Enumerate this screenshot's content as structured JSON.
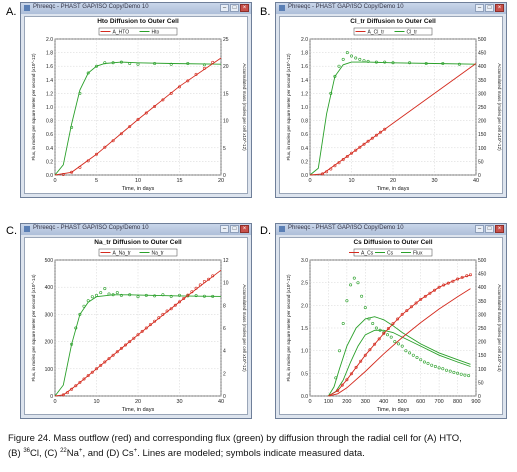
{
  "window_title": "Phreeqc  - PHAST GAP/ISO Copy/Demo 10",
  "panels": [
    {
      "letter": "A.",
      "title": "Hto Diffusion to Outer Cell",
      "legend": [
        "A_HTO",
        "Hto"
      ],
      "xlabel": "Time, in days",
      "ylabel_left": "Flux, in moles per square meter per second (x10^-12)",
      "ylabel_right": "Accumulated mass (moles per cell x10^-12)",
      "xticks": [
        "0",
        "5",
        "10",
        "15",
        "20"
      ],
      "yticks_left": [
        "0.0",
        "0.2",
        "0.4",
        "0.6",
        "0.8",
        "1.0",
        "1.2",
        "1.4",
        "1.6",
        "1.8",
        "2.0"
      ],
      "yticks_right": [
        "0",
        "5",
        "10",
        "15",
        "20",
        "25"
      ]
    },
    {
      "letter": "B.",
      "title": "Cl_tr Diffusion to Outer Cell",
      "legend": [
        "A_Cl_tr",
        "Cl_tr"
      ],
      "xlabel": "Time, in days",
      "ylabel_left": "Flux, in moles per square meter per second (x10^-12)",
      "ylabel_right": "Accumulated mass (moles per cell x10^-12)",
      "xticks": [
        "0",
        "10",
        "20",
        "30",
        "40"
      ],
      "yticks_left": [
        "0.0",
        "0.2",
        "0.4",
        "0.6",
        "0.8",
        "1.0",
        "1.2",
        "1.4",
        "1.6",
        "1.8",
        "2.0"
      ],
      "yticks_right": [
        "0",
        "50",
        "100",
        "150",
        "200",
        "250",
        "300",
        "350",
        "400",
        "450",
        "500"
      ]
    },
    {
      "letter": "C.",
      "title": "Na_tr Diffusion to Outer Cell",
      "legend": [
        "A_Na_tr",
        "Na_tr"
      ],
      "xlabel": "Time, in days",
      "ylabel_left": "Flux, in moles per square meter per second (x10^-14)",
      "ylabel_right": "Accumulated mass (moles per cell x10^-12)",
      "xticks": [
        "0",
        "10",
        "20",
        "30",
        "40"
      ],
      "yticks_left": [
        "0",
        "100",
        "200",
        "300",
        "400",
        "500"
      ],
      "yticks_right": [
        "0",
        "2",
        "4",
        "6",
        "8",
        "10",
        "12"
      ]
    },
    {
      "letter": "D.",
      "title": "Cs Diffusion to Outer Cell",
      "legend": [
        "A_Cs",
        "Cs",
        "Flux"
      ],
      "xlabel": "Time, in days",
      "ylabel_left": "Flux, in moles per square meter per second (x10^-12)",
      "ylabel_right": "Accumulated mass (moles per cell x10^-14)",
      "xticks": [
        "0",
        "100",
        "200",
        "300",
        "400",
        "500",
        "600",
        "700",
        "800",
        "900"
      ],
      "yticks_left": [
        "0.0",
        "0.5",
        "1.0",
        "1.5",
        "2.0",
        "2.5",
        "3.0"
      ],
      "yticks_right": [
        "0",
        "50",
        "100",
        "150",
        "200",
        "250",
        "300",
        "350",
        "400",
        "450",
        "500"
      ]
    }
  ],
  "caption": {
    "line1": "Figure 24. Mass outflow (red) and corresponding flux (green) by diffusion through the radial cell for (A) HTO,",
    "line2_pre": "(B) ",
    "sup_cl": "36",
    "line2_cl": "Cl, (C) ",
    "sup_na": "22",
    "line2_na": "Na",
    "sup_plus1": "+",
    "line2_cs": ", and (D) Cs",
    "sup_plus2": "+",
    "line2_post": ". Lines are modeled; symbols indicate measured data."
  },
  "colors": {
    "mass": "#d42a1e",
    "flux": "#2aa02a",
    "grid": "#c8c8c8"
  },
  "chart_data": [
    {
      "type": "line",
      "title": "Hto Diffusion to Outer Cell",
      "xlabel": "Time, in days",
      "ylabel": "Flux, in moles per square meter per second (x10^-12)",
      "y2label": "Accumulated mass (moles per cell x10^-12)",
      "xlim": [
        0,
        20
      ],
      "ylim": [
        0,
        2.0
      ],
      "y2lim": [
        0,
        25
      ],
      "series": [
        {
          "name": "Hto",
          "axis": "left",
          "style": "line",
          "color": "#2aa02a",
          "x": [
            0,
            1,
            2,
            3,
            4,
            5,
            6,
            8,
            10,
            14,
            20
          ],
          "y": [
            0,
            0.15,
            0.75,
            1.25,
            1.5,
            1.6,
            1.64,
            1.66,
            1.65,
            1.64,
            1.63
          ]
        },
        {
          "name": "Hto",
          "axis": "left",
          "style": "markers",
          "color": "#2aa02a",
          "x": [
            2,
            3,
            4,
            5,
            6,
            7,
            8,
            9,
            10,
            12,
            14,
            16,
            18
          ],
          "y": [
            0.7,
            1.2,
            1.5,
            1.6,
            1.65,
            1.65,
            1.66,
            1.64,
            1.63,
            1.64,
            1.63,
            1.64,
            1.62
          ]
        },
        {
          "name": "A_HTO",
          "axis": "right",
          "style": "line",
          "color": "#d42a1e",
          "x": [
            0,
            2,
            5,
            10,
            15,
            20
          ],
          "y": [
            0,
            0.5,
            3.8,
            10.2,
            16.3,
            21.5
          ]
        },
        {
          "name": "A_HTO",
          "axis": "right",
          "style": "markers",
          "color": "#d42a1e",
          "x": [
            1,
            2,
            3,
            4,
            5,
            6,
            7,
            8,
            9,
            10,
            11,
            12,
            13,
            14,
            15,
            16,
            17,
            18,
            19
          ],
          "y": [
            0.1,
            0.5,
            1.4,
            2.6,
            3.8,
            5.1,
            6.3,
            7.6,
            8.9,
            10.2,
            11.4,
            12.6,
            13.8,
            15.0,
            16.2,
            17.3,
            18.5,
            19.6,
            20.7
          ]
        }
      ]
    },
    {
      "type": "line",
      "title": "Cl_tr Diffusion to Outer Cell",
      "xlabel": "Time, in days",
      "ylabel": "Flux, in moles per square meter per second (x10^-12)",
      "y2label": "Accumulated mass (moles per cell x10^-12)",
      "xlim": [
        0,
        40
      ],
      "ylim": [
        0,
        2.0
      ],
      "y2lim": [
        0,
        500
      ],
      "series": [
        {
          "name": "Cl_tr",
          "axis": "left",
          "style": "line",
          "color": "#2aa02a",
          "x": [
            0,
            2,
            4,
            6,
            8,
            10,
            14,
            20,
            30,
            40
          ],
          "y": [
            0,
            0.1,
            0.9,
            1.45,
            1.62,
            1.66,
            1.66,
            1.65,
            1.64,
            1.63
          ]
        },
        {
          "name": "Cl_tr",
          "axis": "left",
          "style": "markers",
          "color": "#2aa02a",
          "x": [
            5,
            6,
            7,
            8,
            9,
            10,
            11,
            12,
            13,
            14,
            16,
            18,
            20,
            24,
            28,
            32,
            36
          ],
          "y": [
            1.2,
            1.45,
            1.6,
            1.7,
            1.8,
            1.75,
            1.72,
            1.7,
            1.68,
            1.67,
            1.66,
            1.66,
            1.65,
            1.65,
            1.64,
            1.64,
            1.63
          ]
        },
        {
          "name": "A_Cl_tr",
          "axis": "right",
          "style": "line",
          "color": "#d42a1e",
          "x": [
            0,
            3,
            10,
            20,
            30,
            40
          ],
          "y": [
            0,
            4,
            80,
            190,
            300,
            410
          ]
        },
        {
          "name": "A_Cl_tr",
          "axis": "right",
          "style": "markers",
          "color": "#d42a1e",
          "x": [
            3,
            4,
            5,
            6,
            7,
            8,
            9,
            10,
            11,
            12,
            13,
            14,
            15,
            16,
            17,
            18
          ],
          "y": [
            4,
            12,
            22,
            34,
            45,
            57,
            68,
            80,
            91,
            102,
            113,
            124,
            135,
            146,
            157,
            168
          ]
        }
      ]
    },
    {
      "type": "line",
      "title": "Na_tr Diffusion to Outer Cell",
      "xlabel": "Time, in days",
      "ylabel": "Flux, in moles per square meter per second (x10^-14)",
      "y2label": "Accumulated mass (moles per cell x10^-12)",
      "xlim": [
        0,
        40
      ],
      "ylim": [
        0,
        500
      ],
      "y2lim": [
        0,
        12
      ],
      "series": [
        {
          "name": "Na_tr",
          "axis": "left",
          "style": "line",
          "color": "#2aa02a",
          "x": [
            0,
            2,
            4,
            6,
            8,
            10,
            14,
            18,
            24,
            30,
            40
          ],
          "y": [
            0,
            40,
            190,
            300,
            345,
            365,
            372,
            372,
            370,
            368,
            366
          ]
        },
        {
          "name": "Na_tr",
          "axis": "left",
          "style": "markers",
          "color": "#2aa02a",
          "x": [
            4,
            5,
            6,
            7,
            8,
            9,
            10,
            11,
            12,
            13,
            14,
            15,
            16,
            18,
            20,
            22,
            24,
            26,
            28,
            30,
            32,
            34,
            36,
            38
          ],
          "y": [
            190,
            250,
            300,
            330,
            350,
            365,
            370,
            380,
            395,
            375,
            372,
            380,
            370,
            372,
            365,
            370,
            368,
            372,
            366,
            370,
            368,
            369,
            367,
            366
          ]
        },
        {
          "name": "A_Na_tr",
          "axis": "right",
          "style": "line",
          "color": "#d42a1e",
          "x": [
            0,
            2,
            5,
            10,
            20,
            30,
            40
          ],
          "y": [
            0,
            0.1,
            0.9,
            2.4,
            5.4,
            8.3,
            11.1
          ]
        },
        {
          "name": "A_Na_tr",
          "axis": "right",
          "style": "markers",
          "color": "#d42a1e",
          "x": [
            2,
            3,
            4,
            5,
            6,
            7,
            8,
            9,
            10,
            11,
            12,
            13,
            14,
            15,
            16,
            17,
            18,
            19,
            20,
            21,
            22,
            23,
            24,
            25,
            26,
            27,
            28,
            29,
            30,
            31,
            32,
            33,
            34,
            35,
            36,
            37,
            38
          ],
          "y": [
            0.1,
            0.3,
            0.6,
            0.9,
            1.2,
            1.5,
            1.8,
            2.1,
            2.4,
            2.7,
            3.0,
            3.3,
            3.6,
            3.9,
            4.2,
            4.5,
            4.8,
            5.1,
            5.4,
            5.7,
            6.0,
            6.3,
            6.6,
            6.9,
            7.2,
            7.5,
            7.7,
            8.0,
            8.3,
            8.6,
            8.9,
            9.2,
            9.5,
            9.8,
            10.1,
            10.3,
            10.6
          ]
        }
      ]
    },
    {
      "type": "line",
      "title": "Cs Diffusion to Outer Cell",
      "xlabel": "Time, in days",
      "ylabel": "Flux, in moles per square meter per second (x10^-12)",
      "y2label": "Accumulated mass (moles per cell x10^-14)",
      "xlim": [
        0,
        900
      ],
      "ylim": [
        0,
        3.0
      ],
      "y2lim": [
        0,
        500
      ],
      "series": [
        {
          "name": "Flux",
          "axis": "left",
          "style": "line",
          "color": "#2aa02a",
          "x": [
            100,
            130,
            160,
            200,
            250,
            300,
            350,
            400,
            450,
            500,
            600,
            700,
            800,
            870
          ],
          "y": [
            0,
            0.2,
            0.6,
            1.1,
            1.5,
            1.7,
            1.75,
            1.68,
            1.55,
            1.4,
            1.15,
            0.95,
            0.8,
            0.7
          ]
        },
        {
          "name": "Flux",
          "axis": "left",
          "style": "line",
          "color": "#2aa02a",
          "x": [
            100,
            140,
            180,
            220,
            260,
            300,
            350,
            400,
            450,
            500,
            600,
            700,
            800,
            870
          ],
          "y": [
            0,
            0.1,
            0.35,
            0.75,
            1.1,
            1.35,
            1.45,
            1.45,
            1.4,
            1.3,
            1.1,
            0.9,
            0.75,
            0.65
          ]
        },
        {
          "name": "Cs",
          "axis": "left",
          "style": "markers",
          "color": "#2aa02a",
          "x": [
            140,
            160,
            180,
            200,
            220,
            240,
            260,
            280,
            300,
            320,
            340,
            360,
            380,
            400,
            420,
            440,
            460,
            480,
            500,
            520,
            540,
            560,
            580,
            600,
            620,
            640,
            660,
            680,
            700,
            720,
            740,
            760,
            780,
            800,
            820,
            840,
            860
          ],
          "y": [
            0.4,
            1.0,
            1.6,
            2.1,
            2.45,
            2.6,
            2.5,
            2.2,
            1.95,
            1.7,
            1.6,
            1.5,
            1.45,
            1.4,
            1.35,
            1.3,
            1.2,
            1.15,
            1.1,
            1.0,
            0.95,
            0.9,
            0.85,
            0.8,
            0.75,
            0.72,
            0.68,
            0.65,
            0.62,
            0.6,
            0.57,
            0.55,
            0.52,
            0.5,
            0.48,
            0.46,
            0.45
          ]
        },
        {
          "name": "A_Cs",
          "axis": "right",
          "style": "line",
          "color": "#d42a1e",
          "x": [
            100,
            150,
            200,
            300,
            400,
            500,
            600,
            700,
            800,
            870
          ],
          "y": [
            0,
            20,
            60,
            150,
            230,
            300,
            355,
            400,
            430,
            445
          ]
        },
        {
          "name": "A_Cs",
          "axis": "right",
          "style": "line",
          "color": "#d42a1e",
          "x": [
            100,
            150,
            200,
            300,
            400,
            500,
            600,
            700,
            800,
            870
          ],
          "y": [
            0,
            8,
            30,
            90,
            155,
            215,
            270,
            320,
            365,
            395
          ]
        },
        {
          "name": "A_Cs",
          "axis": "right",
          "style": "markers",
          "color": "#d42a1e",
          "x": [
            150,
            175,
            200,
            225,
            250,
            275,
            300,
            325,
            350,
            375,
            400,
            425,
            450,
            475,
            500,
            525,
            550,
            575,
            600,
            625,
            650,
            675,
            700,
            725,
            750,
            775,
            800,
            825,
            850,
            870
          ],
          "y": [
            20,
            40,
            60,
            82,
            105,
            128,
            150,
            170,
            190,
            210,
            230,
            248,
            266,
            283,
            300,
            314,
            328,
            342,
            355,
            366,
            378,
            389,
            400,
            408,
            415,
            422,
            430,
            436,
            442,
            446
          ]
        }
      ]
    }
  ]
}
